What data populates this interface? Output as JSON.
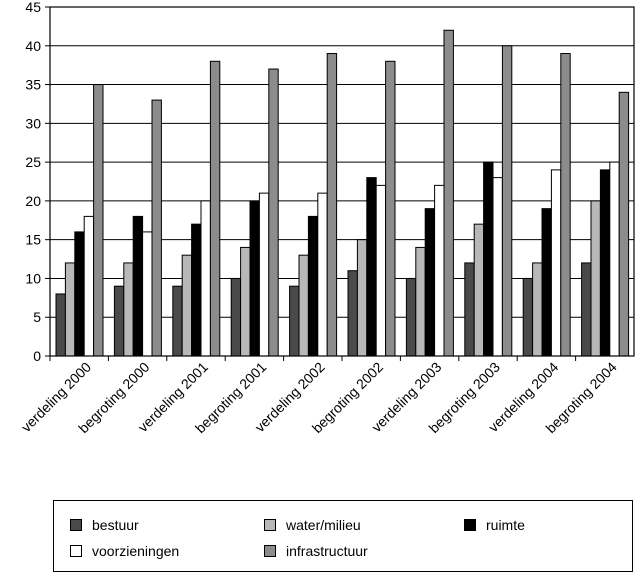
{
  "chart_data": {
    "type": "bar",
    "categories": [
      "verdeling 2000",
      "begroting 2000",
      "verdeling 2001",
      "begroting 2001",
      "verdeling 2002",
      "begroting 2002",
      "verdeling 2003",
      "begroting 2003",
      "verdeling 2004",
      "begroting 2004"
    ],
    "series": [
      {
        "name": "bestuur",
        "color": "#4a4a4a",
        "values": [
          8,
          9,
          9,
          10,
          9,
          11,
          10,
          12,
          10,
          12
        ]
      },
      {
        "name": "water/milieu",
        "color": "#b8b8b8",
        "values": [
          12,
          12,
          13,
          14,
          13,
          15,
          14,
          17,
          12,
          20
        ]
      },
      {
        "name": "ruimte",
        "color": "#000000",
        "values": [
          16,
          18,
          17,
          20,
          18,
          23,
          19,
          25,
          19,
          24
        ]
      },
      {
        "name": "voorzieningen",
        "color": "#ffffff",
        "values": [
          18,
          16,
          20,
          21,
          21,
          22,
          22,
          23,
          24,
          25
        ]
      },
      {
        "name": "infrastructuur",
        "color": "#8c8c8c",
        "values": [
          35,
          33,
          38,
          37,
          39,
          38,
          42,
          40,
          39,
          34
        ]
      }
    ],
    "title": "",
    "xlabel": "",
    "ylabel": "",
    "ylim": [
      0,
      45
    ],
    "yticks": [
      0,
      5,
      10,
      15,
      20,
      25,
      30,
      35,
      40,
      45
    ],
    "grid": true,
    "legend_placement": "bottom"
  }
}
